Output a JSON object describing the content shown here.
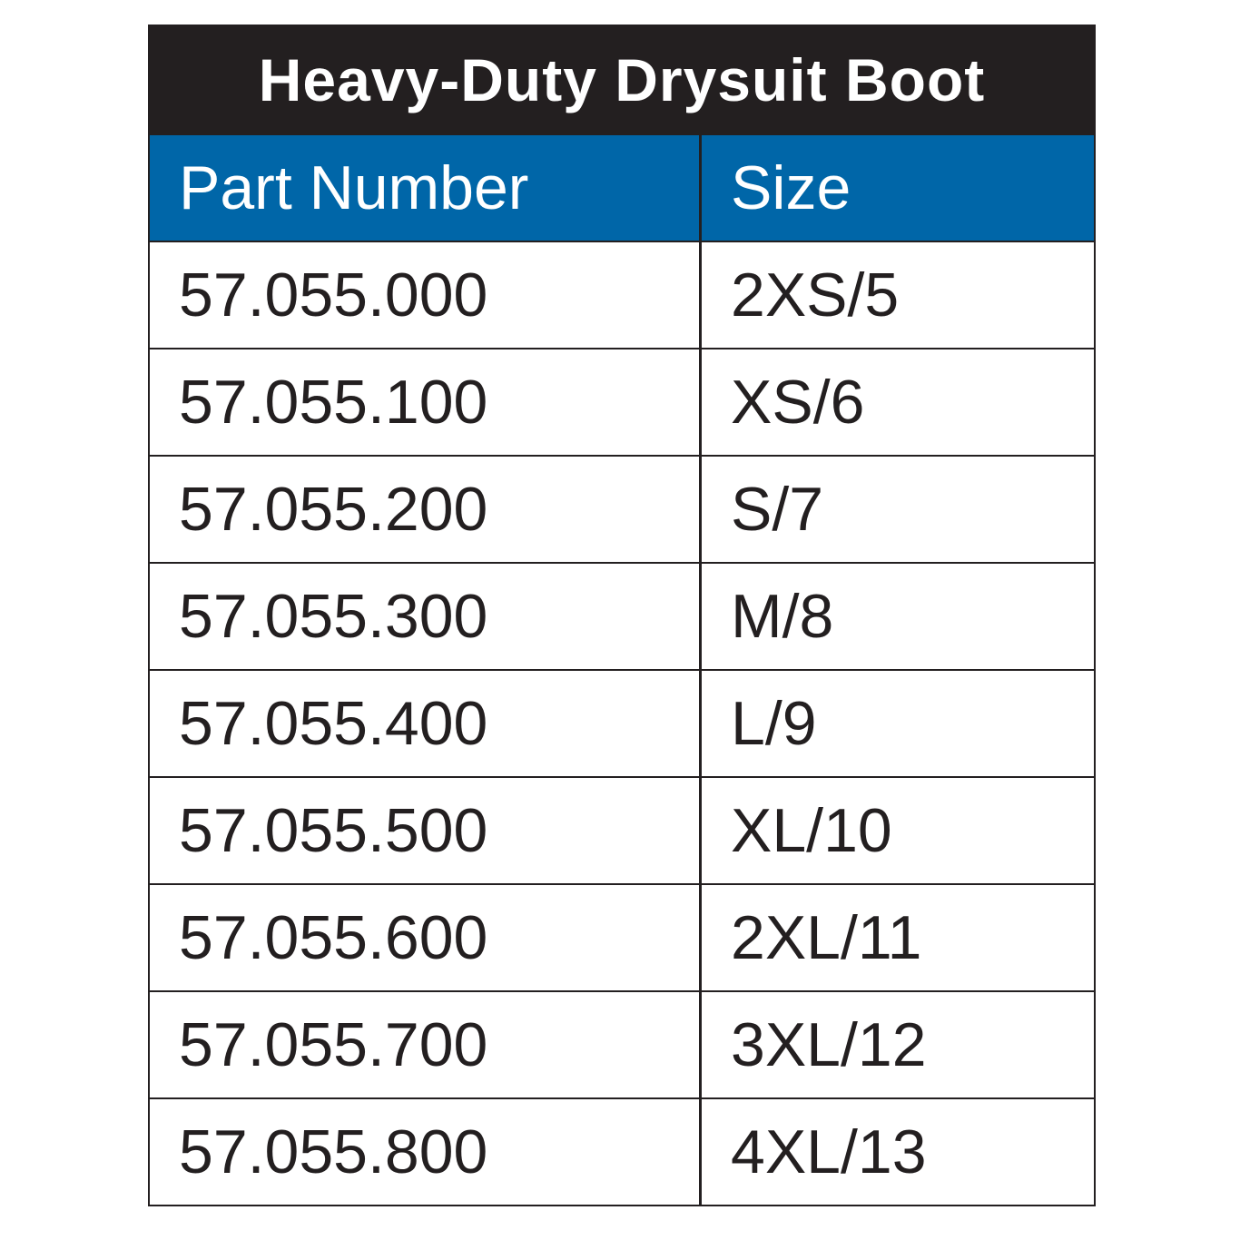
{
  "title": "Heavy-Duty Drysuit Boot",
  "columns": [
    "Part Number",
    "Size"
  ],
  "colors": {
    "title_bg": "#231f20",
    "header_bg": "#0066a8",
    "text": "#231f20"
  },
  "rows": [
    [
      "57.055.000",
      "2XS/5"
    ],
    [
      "57.055.100",
      "XS/6"
    ],
    [
      "57.055.200",
      "S/7"
    ],
    [
      "57.055.300",
      "M/8"
    ],
    [
      "57.055.400",
      "L/9"
    ],
    [
      "57.055.500",
      "XL/10"
    ],
    [
      "57.055.600",
      "2XL/11"
    ],
    [
      "57.055.700",
      "3XL/12"
    ],
    [
      "57.055.800",
      "4XL/13"
    ]
  ]
}
